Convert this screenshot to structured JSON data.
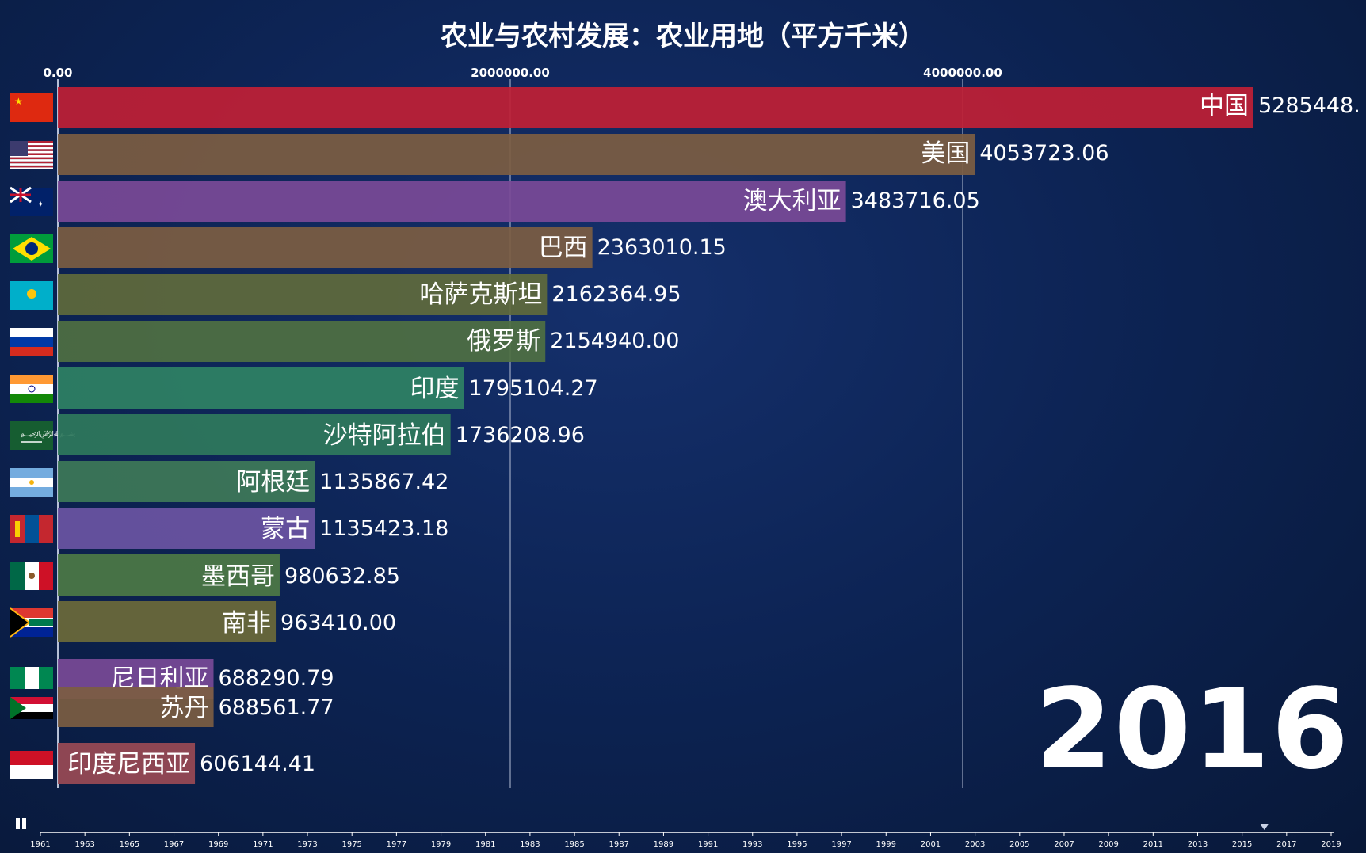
{
  "chart_data": {
    "type": "bar",
    "title": "农业与农村发展：农业用地（平方千米）",
    "year": "2016",
    "ticks": [
      "0.00",
      "2000000.00",
      "4000000.00"
    ],
    "xlim": [
      0,
      5300000
    ],
    "categories": [
      "中国",
      "美国",
      "澳大利亚",
      "巴西",
      "哈萨克斯坦",
      "俄罗斯",
      "印度",
      "沙特阿拉伯",
      "阿根廷",
      "蒙古",
      "墨西哥",
      "南非",
      "尼日利亚",
      "苏丹",
      "印度尼西亚"
    ],
    "values": [
      5285448.0,
      4053723.06,
      3483716.05,
      2363010.15,
      2162364.95,
      2154940.0,
      1795104.27,
      1736208.96,
      1135867.42,
      1135423.18,
      980632.85,
      963410.0,
      688290.79,
      688561.77,
      606144.41
    ],
    "value_labels": [
      "5285448.",
      "4053723.06",
      "3483716.05",
      "2363010.15",
      "2162364.95",
      "2154940.00",
      "1795104.27",
      "1736208.96",
      "1135867.42",
      "1135423.18",
      "980632.85",
      "963410.00",
      "688290.79",
      "688561.77",
      "606144.41"
    ],
    "colors": [
      "#c01f35",
      "#7c5d42",
      "#7a4a97",
      "#7c5d42",
      "#5f6a3c",
      "#4f7042",
      "#2f8264",
      "#2f7a5c",
      "#3e7a58",
      "#6b55a3",
      "#4d7a45",
      "#6c6a3a",
      "#7a4a97",
      "#7c5d42",
      "#9a4a55"
    ]
  },
  "flags": [
    "china-flag-icon",
    "usa-flag-icon",
    "australia-flag-icon",
    "brazil-flag-icon",
    "kazakhstan-flag-icon",
    "russia-flag-icon",
    "india-flag-icon",
    "saudi-arabia-flag-icon",
    "argentina-flag-icon",
    "mongolia-flag-icon",
    "mexico-flag-icon",
    "south-africa-flag-icon",
    "nigeria-flag-icon",
    "sudan-flag-icon",
    "indonesia-flag-icon"
  ],
  "timeline": {
    "labels": [
      "1961",
      "1963",
      "1965",
      "1967",
      "1969",
      "1971",
      "1973",
      "1975",
      "1977",
      "1979",
      "1981",
      "1983",
      "1985",
      "1987",
      "1989",
      "1991",
      "1993",
      "1995",
      "1997",
      "1999",
      "2001",
      "2003",
      "2005",
      "2007",
      "2009",
      "2011",
      "2013",
      "2015",
      "2017",
      "2019"
    ],
    "current": "2016",
    "controls": {
      "play_icon": "pause-icon"
    }
  }
}
